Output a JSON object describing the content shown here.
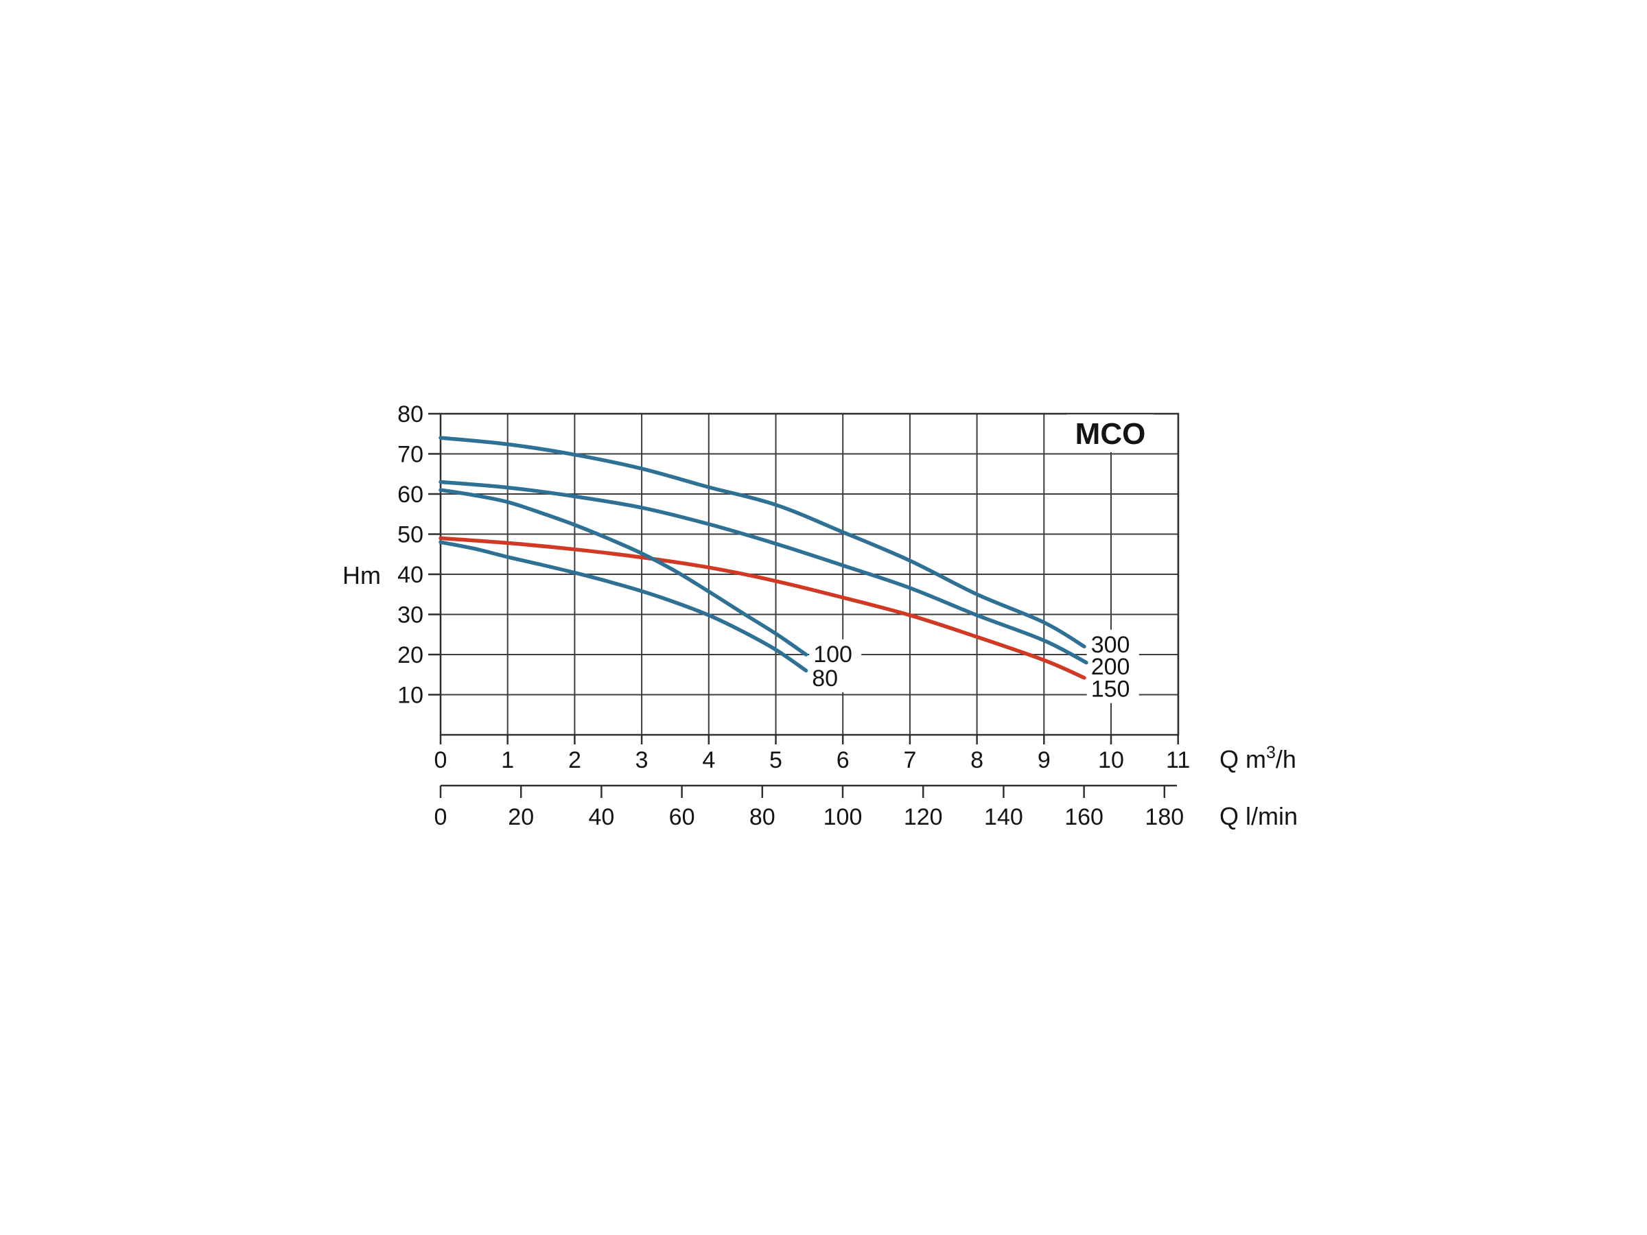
{
  "page": {
    "background": "#ffffff"
  },
  "chart_data": {
    "type": "line",
    "title": "MCO",
    "title_color": "#2e7cab",
    "grid": true,
    "grid_color": "#3d3d3d",
    "axis_color": "#2f2f2f",
    "legend_position": "curve-end-labels",
    "y_axis": {
      "label": "Hm",
      "ticks": [
        80,
        70,
        60,
        50,
        40,
        30,
        20,
        10
      ],
      "range": [
        0,
        80
      ]
    },
    "x_axis_primary": {
      "label_parts": [
        "Q m",
        "3",
        "/h"
      ],
      "ticks": [
        0,
        1,
        2,
        3,
        4,
        5,
        6,
        7,
        8,
        9,
        10,
        11
      ],
      "range": [
        0,
        11
      ]
    },
    "x_axis_secondary": {
      "label": "Q l/min",
      "ticks": [
        0,
        20,
        40,
        60,
        80,
        100,
        120,
        140,
        160,
        180
      ],
      "range": [
        0,
        180
      ]
    },
    "series": [
      {
        "name": "300",
        "color": "#2e7195",
        "label_pos": {
          "q": 9.7,
          "hm": 22.6
        },
        "points": [
          [
            0,
            74
          ],
          [
            1,
            72.4
          ],
          [
            2,
            69.8
          ],
          [
            3,
            66.3
          ],
          [
            4,
            61.7
          ],
          [
            5,
            57.3
          ],
          [
            6,
            50.5
          ],
          [
            7,
            43.4
          ],
          [
            8,
            35.0
          ],
          [
            9,
            28.0
          ],
          [
            9.6,
            22.0
          ]
        ]
      },
      {
        "name": "200",
        "color": "#2e7195",
        "label_pos": {
          "q": 9.7,
          "hm": 17.1
        },
        "points": [
          [
            0,
            63
          ],
          [
            1,
            61.6
          ],
          [
            2,
            59.4
          ],
          [
            3,
            56.6
          ],
          [
            4,
            52.5
          ],
          [
            5,
            47.6
          ],
          [
            6,
            42.2
          ],
          [
            7,
            36.6
          ],
          [
            8,
            29.8
          ],
          [
            9,
            23.5
          ],
          [
            9.63,
            18.0
          ]
        ]
      },
      {
        "name": "150",
        "color": "#d03924",
        "label_pos": {
          "q": 9.7,
          "hm": 11.5
        },
        "points": [
          [
            0,
            49
          ],
          [
            1,
            47.8
          ],
          [
            2,
            46.2
          ],
          [
            3,
            44.2
          ],
          [
            4,
            41.7
          ],
          [
            5,
            38.3
          ],
          [
            6,
            34.2
          ],
          [
            7,
            29.8
          ],
          [
            8,
            24.4
          ],
          [
            9,
            18.6
          ],
          [
            9.6,
            14.2
          ]
        ]
      },
      {
        "name": "100",
        "color": "#2e7195",
        "label_pos": {
          "q": 5.56,
          "hm": 20.2
        },
        "points": [
          [
            0,
            61
          ],
          [
            0.5,
            59.7
          ],
          [
            1,
            58.0
          ],
          [
            1.5,
            55.3
          ],
          [
            2,
            52.3
          ],
          [
            2.5,
            48.9
          ],
          [
            3,
            45.2
          ],
          [
            3.5,
            40.8
          ],
          [
            4,
            35.7
          ],
          [
            4.5,
            30.4
          ],
          [
            5,
            25.2
          ],
          [
            5.45,
            20.0
          ]
        ]
      },
      {
        "name": "80",
        "color": "#2e7195",
        "label_pos": {
          "q": 5.54,
          "hm": 14.2
        },
        "points": [
          [
            0,
            48
          ],
          [
            0.5,
            46.4
          ],
          [
            1,
            44.3
          ],
          [
            1.5,
            42.4
          ],
          [
            2,
            40.4
          ],
          [
            2.5,
            38.2
          ],
          [
            3,
            35.8
          ],
          [
            3.5,
            33.0
          ],
          [
            4,
            29.8
          ],
          [
            4.5,
            25.8
          ],
          [
            5,
            21.2
          ],
          [
            5.45,
            16.0
          ]
        ]
      }
    ]
  }
}
